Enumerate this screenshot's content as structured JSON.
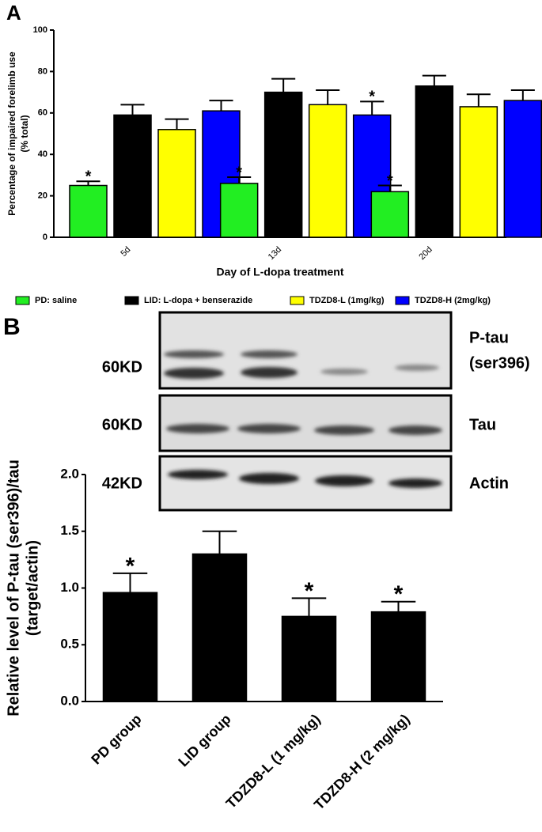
{
  "chart_data": [
    {
      "type": "bar",
      "panel": "A",
      "y_label": [
        "Percentage of impaired forelimb use",
        "(% total)"
      ],
      "x_label": "Day of L-dopa treatment",
      "categories": [
        "5d",
        "13d",
        "20d"
      ],
      "series": [
        {
          "name": "PD: saline",
          "color": "#22ee22",
          "values": [
            25,
            26,
            22
          ],
          "errors": [
            2,
            3,
            3
          ],
          "significance": [
            "*",
            "*",
            "*"
          ]
        },
        {
          "name": "LID: L-dopa + benserazide",
          "color": "#000000",
          "values": [
            59,
            70,
            73
          ],
          "errors": [
            5,
            6.5,
            5
          ],
          "significance": [
            null,
            null,
            null
          ]
        },
        {
          "name": "TDZD8-L (1mg/kg)",
          "color": "#ffff00",
          "values": [
            52,
            64,
            63
          ],
          "errors": [
            5,
            7,
            6
          ],
          "significance": [
            null,
            null,
            null
          ]
        },
        {
          "name": "TDZD8-H (2mg/kg)",
          "color": "#0000ff",
          "values": [
            61,
            59,
            66
          ],
          "errors": [
            5,
            6.5,
            5
          ],
          "significance": [
            null,
            "*",
            null
          ]
        }
      ],
      "ylim": [
        0,
        100
      ],
      "yticks": [
        0,
        20,
        40,
        60,
        80,
        100
      ],
      "legend": "bottom"
    },
    {
      "type": "bar",
      "panel": "B",
      "y_label": [
        "Relative level of P-tau (ser396)/tau",
        "(target/actin)"
      ],
      "categories": [
        "PD group",
        "LID group",
        "TDZD8-L (1 mg/kg)",
        "TDZD8-H (2 mg/kg)"
      ],
      "values": [
        0.96,
        1.3,
        0.75,
        0.79
      ],
      "errors": [
        0.17,
        0.2,
        0.16,
        0.09
      ],
      "significance": [
        "*",
        null,
        "*",
        "*"
      ],
      "color": "#000000",
      "ylim": [
        0,
        2.0
      ],
      "yticks": [
        {
          "value": 0,
          "label": "0.0"
        },
        {
          "value": 0.5,
          "label": "0.5"
        },
        {
          "value": 1,
          "label": "1.0"
        },
        {
          "value": 1.5,
          "label": "1.5"
        },
        {
          "value": 2,
          "label": "2.0"
        }
      ],
      "blots": [
        {
          "size": "60KD",
          "label": [
            "P-tau",
            "(ser396)"
          ]
        },
        {
          "size": "60KD",
          "label": [
            "Tau"
          ]
        },
        {
          "size": "42KD",
          "label": [
            "Actin"
          ]
        }
      ]
    }
  ]
}
